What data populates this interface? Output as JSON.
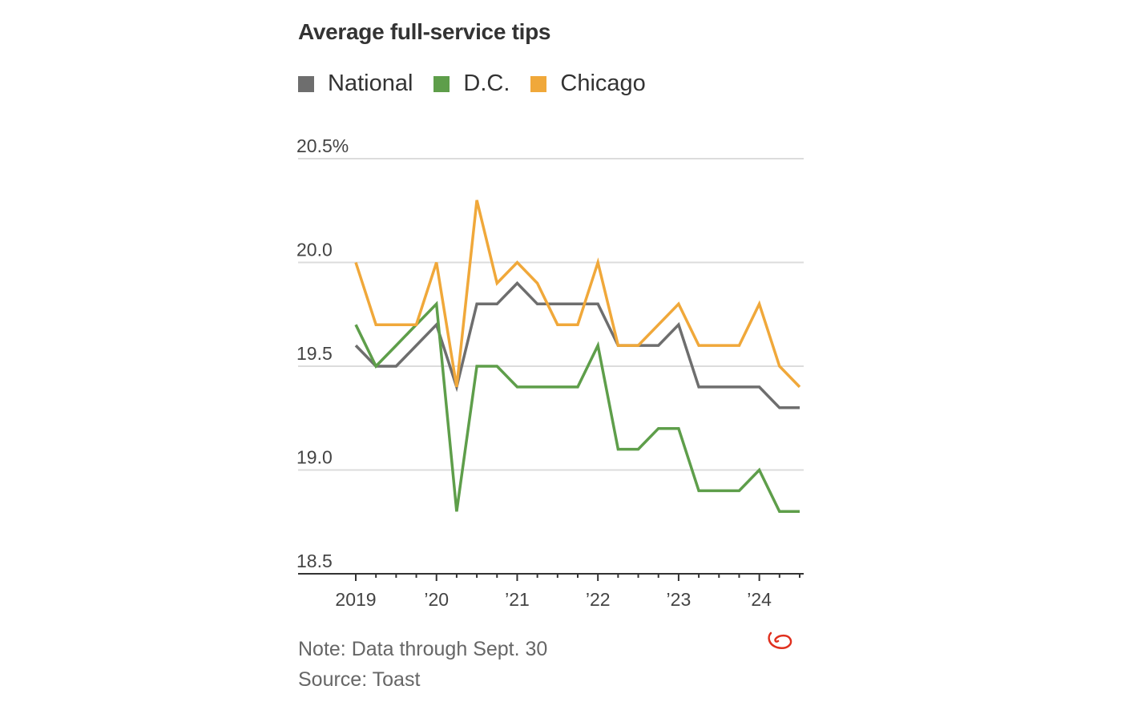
{
  "title": "Average full-service tips",
  "legend": [
    {
      "label": "National",
      "color": "#6e6e6e"
    },
    {
      "label": "D.C.",
      "color": "#5e9e4a"
    },
    {
      "label": "Chicago",
      "color": "#f0a83a"
    }
  ],
  "footer": {
    "note": "Note: Data through Sept. 30",
    "source": "Source: Toast"
  },
  "chart_data": {
    "type": "line",
    "title": "Average full-service tips",
    "xlabel": "",
    "ylabel": "",
    "ylim": [
      18.5,
      20.5
    ],
    "y_ticks": [
      {
        "value": 18.5,
        "label": "18.5"
      },
      {
        "value": 19.0,
        "label": "19.0"
      },
      {
        "value": 19.5,
        "label": "19.5"
      },
      {
        "value": 20.0,
        "label": "20.0"
      },
      {
        "value": 20.5,
        "label": "20.5%"
      }
    ],
    "x": [
      "2019 Q1",
      "2019 Q2",
      "2019 Q3",
      "2019 Q4",
      "2020 Q1",
      "2020 Q2",
      "2020 Q3",
      "2020 Q4",
      "2021 Q1",
      "2021 Q2",
      "2021 Q3",
      "2021 Q4",
      "2022 Q1",
      "2022 Q2",
      "2022 Q3",
      "2022 Q4",
      "2023 Q1",
      "2023 Q2",
      "2023 Q3",
      "2023 Q4",
      "2024 Q1",
      "2024 Q2",
      "2024 Q3"
    ],
    "x_tick_labels": [
      {
        "index": 0,
        "label": "2019"
      },
      {
        "index": 4,
        "label": "’20"
      },
      {
        "index": 8,
        "label": "’21"
      },
      {
        "index": 12,
        "label": "’22"
      },
      {
        "index": 16,
        "label": "’23"
      },
      {
        "index": 20,
        "label": "’24"
      }
    ],
    "grid": true,
    "legend_position": "top-left",
    "series": [
      {
        "name": "National",
        "color": "#6e6e6e",
        "values": [
          19.6,
          19.5,
          19.5,
          19.6,
          19.7,
          19.4,
          19.8,
          19.8,
          19.9,
          19.8,
          19.8,
          19.8,
          19.8,
          19.6,
          19.6,
          19.6,
          19.7,
          19.4,
          19.4,
          19.4,
          19.4,
          19.3,
          19.3
        ]
      },
      {
        "name": "D.C.",
        "color": "#5e9e4a",
        "values": [
          19.7,
          19.5,
          19.6,
          19.7,
          19.8,
          18.8,
          19.5,
          19.5,
          19.4,
          19.4,
          19.4,
          19.4,
          19.6,
          19.1,
          19.1,
          19.2,
          19.2,
          18.9,
          18.9,
          18.9,
          19.0,
          18.8,
          18.8
        ]
      },
      {
        "name": "Chicago",
        "color": "#f0a83a",
        "values": [
          20.0,
          19.7,
          19.7,
          19.7,
          20.0,
          19.4,
          20.3,
          19.9,
          20.0,
          19.9,
          19.7,
          19.7,
          20.0,
          19.6,
          19.6,
          19.7,
          19.8,
          19.6,
          19.6,
          19.6,
          19.8,
          19.5,
          19.4
        ]
      }
    ]
  }
}
